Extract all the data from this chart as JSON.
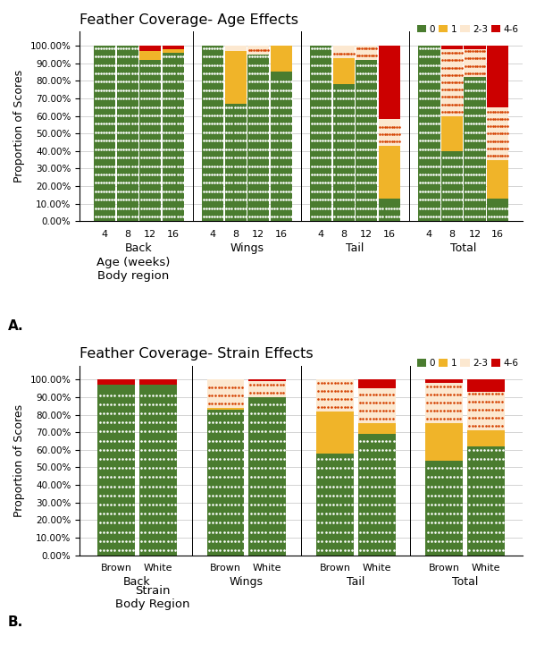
{
  "chart_A": {
    "title": "Feather Coverage- Age Effects",
    "xlabel1": "Age (weeks)",
    "xlabel2": "Body region",
    "ylabel": "Proportion of Scores",
    "groups": [
      "Back",
      "Wings",
      "Tail",
      "Total"
    ],
    "subgroups": [
      "4",
      "8",
      "12",
      "16"
    ],
    "score_0": [
      1.0,
      1.0,
      0.92,
      0.96,
      1.0,
      0.67,
      0.95,
      0.85,
      1.0,
      0.78,
      0.92,
      0.13,
      1.0,
      0.4,
      0.82,
      0.13
    ],
    "score_1": [
      0.0,
      0.0,
      0.05,
      0.02,
      0.0,
      0.3,
      0.0,
      0.15,
      0.0,
      0.15,
      0.0,
      0.3,
      0.0,
      0.2,
      0.0,
      0.22
    ],
    "score_23": [
      0.0,
      0.0,
      0.0,
      0.0,
      0.0,
      0.03,
      0.05,
      0.0,
      0.0,
      0.07,
      0.08,
      0.15,
      0.0,
      0.38,
      0.16,
      0.3
    ],
    "score_46": [
      0.0,
      0.0,
      0.03,
      0.02,
      0.0,
      0.0,
      0.0,
      0.0,
      0.0,
      0.0,
      0.0,
      0.42,
      0.0,
      0.02,
      0.02,
      0.35
    ]
  },
  "chart_B": {
    "title": "Feather Coverage- Strain Effects",
    "xlabel1": "Strain",
    "xlabel2": "Body Region",
    "ylabel": "Proportion of Scores",
    "groups": [
      "Back",
      "Wings",
      "Tail",
      "Total"
    ],
    "subgroups": [
      "Brown",
      "White"
    ],
    "score_0": [
      0.97,
      0.97,
      0.83,
      0.9,
      0.58,
      0.69,
      0.54,
      0.62
    ],
    "score_1": [
      0.0,
      0.0,
      0.01,
      0.0,
      0.24,
      0.06,
      0.21,
      0.09
    ],
    "score_23": [
      0.0,
      0.0,
      0.16,
      0.09,
      0.18,
      0.2,
      0.23,
      0.22
    ],
    "score_46": [
      0.03,
      0.03,
      0.0,
      0.01,
      0.0,
      0.05,
      0.02,
      0.07
    ]
  },
  "green_color": "#4a7c2f",
  "yellow_color": "#f0b429",
  "orange_dot_color": "#d44000",
  "red_color": "#cc0000",
  "score23_bg": "#fce8d0"
}
